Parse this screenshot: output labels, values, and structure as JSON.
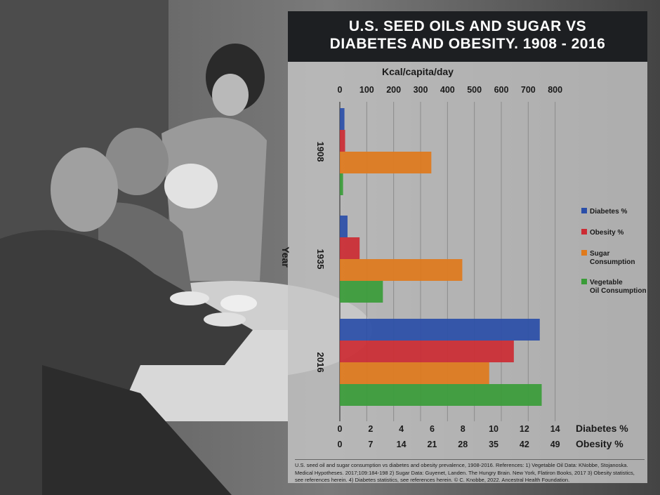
{
  "title_line1": "U.S. SEED OILS AND SUGAR VS",
  "title_line2": "DIABETES AND OBESITY. 1908 - 2016",
  "footnote": "U.S. seed oil and sugar consumption vs diabetes and obesity prevalence, 1908-2016. References: 1) Vegetable Oil Data: KNobbe, Stojanoska. Medical Hypotheses. 2017;109:184-198  2) Sugar Data: Guyenet, Landen. The Hungry Brain. New York, Flatiron Books, 2017  3) Obesity statistics, see references herein.  4) Diabetes statistics, see references herein. © C. Knobbe, 2022. Ancestral Health Foundation.",
  "colors": {
    "diabetes": "#2a4ea8",
    "obesity": "#cc2b33",
    "sugar": "#e07a1c",
    "veg_oil": "#3a9c38",
    "title_bar": "#1d1f22",
    "panel": "#c4c4c4"
  },
  "chart_data": {
    "type": "bar",
    "orientation": "horizontal",
    "ylabel": "Year",
    "categories": [
      "1908",
      "1935",
      "2016"
    ],
    "axes": {
      "kcal": {
        "label": "Kcal/capita/day",
        "position": "top",
        "ticks": [
          0,
          100,
          200,
          300,
          400,
          500,
          600,
          700,
          800
        ],
        "range": [
          0,
          840
        ]
      },
      "diabetes": {
        "label": "Diabetes %",
        "position": "bottom",
        "ticks": [
          0,
          2,
          4,
          6,
          8,
          10,
          12,
          14
        ],
        "range": [
          0,
          14.7
        ]
      },
      "obesity": {
        "label": "Obesity %",
        "position": "bottom",
        "ticks": [
          0,
          7,
          14,
          21,
          28,
          35,
          42,
          49
        ],
        "range": [
          0,
          51.45
        ]
      }
    },
    "grid": true,
    "legend_placement": "right",
    "series": [
      {
        "name": "Diabetes %",
        "axis": "diabetes",
        "color": "#2a4ea8",
        "values": [
          0.3,
          0.5,
          13.0
        ]
      },
      {
        "name": "Obesity %",
        "axis": "obesity",
        "color": "#cc2b33",
        "values": [
          1.2,
          4.5,
          39.6
        ]
      },
      {
        "name": "Sugar Consumption",
        "axis": "kcal",
        "color": "#e07a1c",
        "values": [
          340,
          455,
          555
        ]
      },
      {
        "name": "Vegetable Oil Consumption",
        "axis": "kcal",
        "color": "#3a9c38",
        "values": [
          12,
          160,
          750
        ]
      }
    ]
  }
}
